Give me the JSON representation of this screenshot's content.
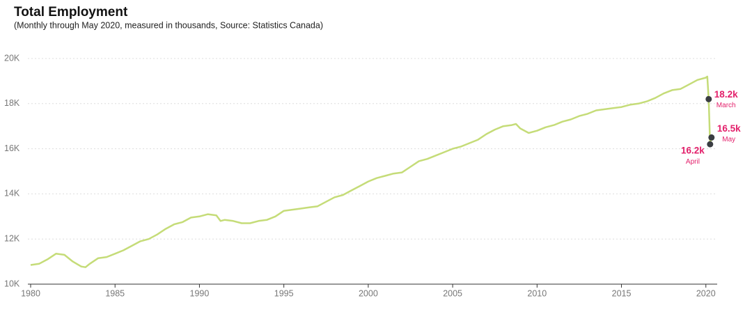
{
  "chart_data": {
    "type": "line",
    "title": "Total Employment",
    "subtitle": "(Monthly through May 2020, measured in thousands, Source: Statistics Canada)",
    "x": [
      1980,
      1980.5,
      1981,
      1981.5,
      1982,
      1982.5,
      1983,
      1983.25,
      1983.5,
      1984,
      1984.5,
      1985,
      1985.5,
      1986,
      1986.5,
      1987,
      1987.5,
      1988,
      1988.5,
      1989,
      1989.5,
      1990,
      1990.5,
      1991,
      1991.25,
      1991.5,
      1992,
      1992.5,
      1993,
      1993.5,
      1994,
      1994.5,
      1995,
      1995.5,
      1996,
      1996.5,
      1997,
      1997.5,
      1998,
      1998.5,
      1999,
      1999.5,
      2000,
      2000.5,
      2001,
      2001.5,
      2002,
      2002.5,
      2003,
      2003.5,
      2004,
      2004.5,
      2005,
      2005.5,
      2006,
      2006.5,
      2007,
      2007.5,
      2008,
      2008.5,
      2008.75,
      2009,
      2009.5,
      2010,
      2010.5,
      2011,
      2011.5,
      2012,
      2012.5,
      2013,
      2013.5,
      2014,
      2014.5,
      2015,
      2015.5,
      2016,
      2016.5,
      2017,
      2017.5,
      2018,
      2018.5,
      2019,
      2019.5,
      2020,
      2020.083,
      2020.167,
      2020.25,
      2020.333
    ],
    "series": [
      {
        "color": "#c5dc78",
        "values": [
          10850,
          10900,
          11100,
          11350,
          11300,
          11000,
          10780,
          10750,
          10900,
          11150,
          11200,
          11350,
          11500,
          11700,
          11900,
          12000,
          12200,
          12450,
          12650,
          12750,
          12950,
          13000,
          13100,
          13050,
          12800,
          12850,
          12800,
          12700,
          12700,
          12800,
          12850,
          13000,
          13250,
          13300,
          13350,
          13400,
          13450,
          13650,
          13850,
          13950,
          14150,
          14350,
          14550,
          14700,
          14800,
          14900,
          14950,
          15200,
          15450,
          15550,
          15700,
          15850,
          16000,
          16100,
          16250,
          16400,
          16650,
          16850,
          17000,
          17050,
          17100,
          16900,
          16700,
          16800,
          16950,
          17050,
          17200,
          17300,
          17450,
          17550,
          17700,
          17750,
          17800,
          17850,
          17950,
          18000,
          18100,
          18250,
          18450,
          18600,
          18650,
          18850,
          19050,
          19150,
          19200,
          18200,
          16200,
          16500
        ]
      }
    ],
    "annotations": [
      {
        "x": 2020.167,
        "value": 18200,
        "value_label": "18.2k",
        "label": "March"
      },
      {
        "x": 2020.25,
        "value": 16200,
        "value_label": "16.2k",
        "label": "April"
      },
      {
        "x": 2020.333,
        "value": 16500,
        "value_label": "16.5k",
        "label": "May"
      }
    ],
    "marker_color": "#3a3d42",
    "xlim": [
      1980,
      2020.67
    ],
    "ylim": [
      10000,
      20000
    ],
    "xticks": [
      1980,
      1985,
      1990,
      1995,
      2000,
      2005,
      2010,
      2015,
      2020
    ],
    "yticks": [
      {
        "value": 10000,
        "label": "10K"
      },
      {
        "value": 12000,
        "label": "12K"
      },
      {
        "value": 14000,
        "label": "14K"
      },
      {
        "value": 16000,
        "label": "16K"
      },
      {
        "value": 18000,
        "label": "18K"
      },
      {
        "value": 20000,
        "label": "20K"
      }
    ],
    "grid": true
  }
}
